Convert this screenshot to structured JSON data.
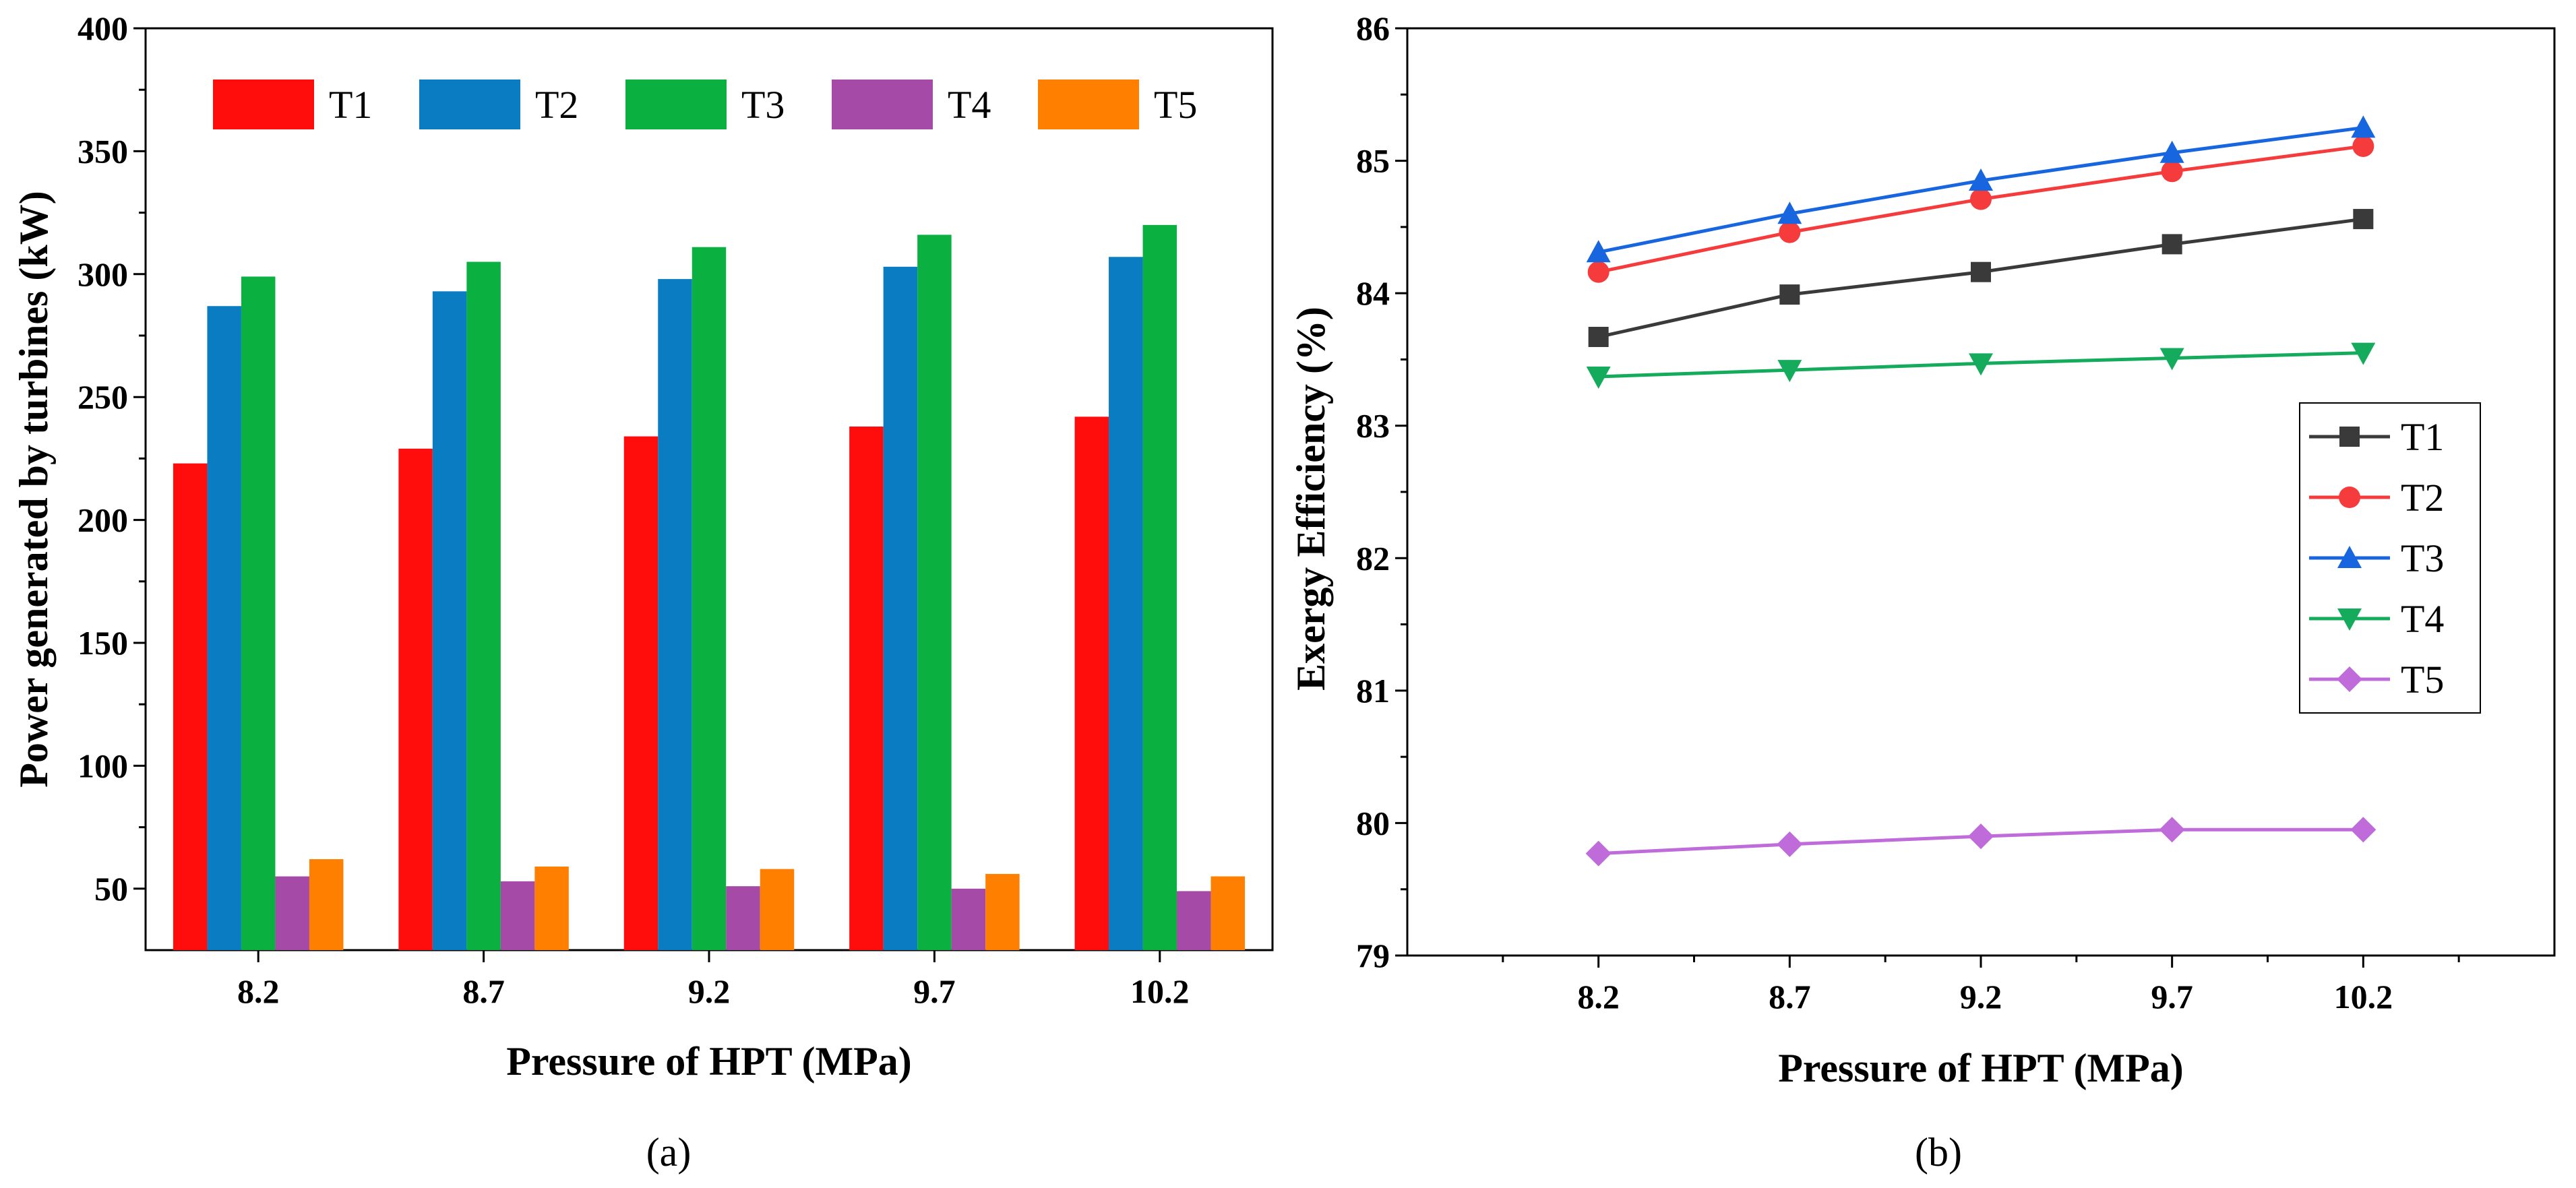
{
  "chart_data": [
    {
      "type": "bar",
      "panel_label": "(a)",
      "title": "",
      "xlabel": "Pressure of HPT (MPa)",
      "ylabel": "Power generated by turbines (kW)",
      "categories": [
        "8.2",
        "8.7",
        "9.2",
        "9.7",
        "10.2"
      ],
      "ylim": [
        25,
        400
      ],
      "yticks": [
        50,
        100,
        150,
        200,
        250,
        300,
        350,
        400
      ],
      "legend_position": "top",
      "series": [
        {
          "name": "T1",
          "color": "#ff0d0d",
          "values": [
            223,
            229,
            234,
            238,
            242
          ]
        },
        {
          "name": "T2",
          "color": "#0a7dc2",
          "values": [
            287,
            293,
            298,
            303,
            307
          ]
        },
        {
          "name": "T3",
          "color": "#0ab040",
          "values": [
            299,
            305,
            311,
            316,
            320
          ]
        },
        {
          "name": "T4",
          "color": "#a54aa6",
          "values": [
            55,
            53,
            51,
            50,
            49
          ]
        },
        {
          "name": "T5",
          "color": "#ff8000",
          "values": [
            62,
            59,
            58,
            56,
            55
          ]
        }
      ]
    },
    {
      "type": "line",
      "panel_label": "(b)",
      "title": "",
      "xlabel": "Pressure of HPT (MPa)",
      "ylabel": "Exergy Efficiency (%)",
      "x": [
        "8.2",
        "8.7",
        "9.2",
        "9.7",
        "10.2"
      ],
      "xlim": [
        7.7,
        10.7
      ],
      "ylim": [
        79,
        86
      ],
      "yticks": [
        79,
        80,
        81,
        82,
        83,
        84,
        85,
        86
      ],
      "legend_position": "right",
      "series": [
        {
          "name": "T1",
          "color": "#3a3a3a",
          "marker": "square",
          "values": [
            83.67,
            83.99,
            84.16,
            84.37,
            84.56
          ]
        },
        {
          "name": "T2",
          "color": "#f53b3b",
          "marker": "circle",
          "values": [
            84.16,
            84.46,
            84.71,
            84.92,
            85.11
          ]
        },
        {
          "name": "T3",
          "color": "#1766e0",
          "marker": "triangle-up",
          "values": [
            84.31,
            84.6,
            84.85,
            85.06,
            85.25
          ]
        },
        {
          "name": "T4",
          "color": "#14ac5c",
          "marker": "triangle-down",
          "values": [
            83.37,
            83.42,
            83.47,
            83.51,
            83.55
          ]
        },
        {
          "name": "T5",
          "color": "#bf6bda",
          "marker": "diamond",
          "values": [
            79.77,
            79.84,
            79.9,
            79.95,
            79.95
          ]
        }
      ]
    }
  ]
}
